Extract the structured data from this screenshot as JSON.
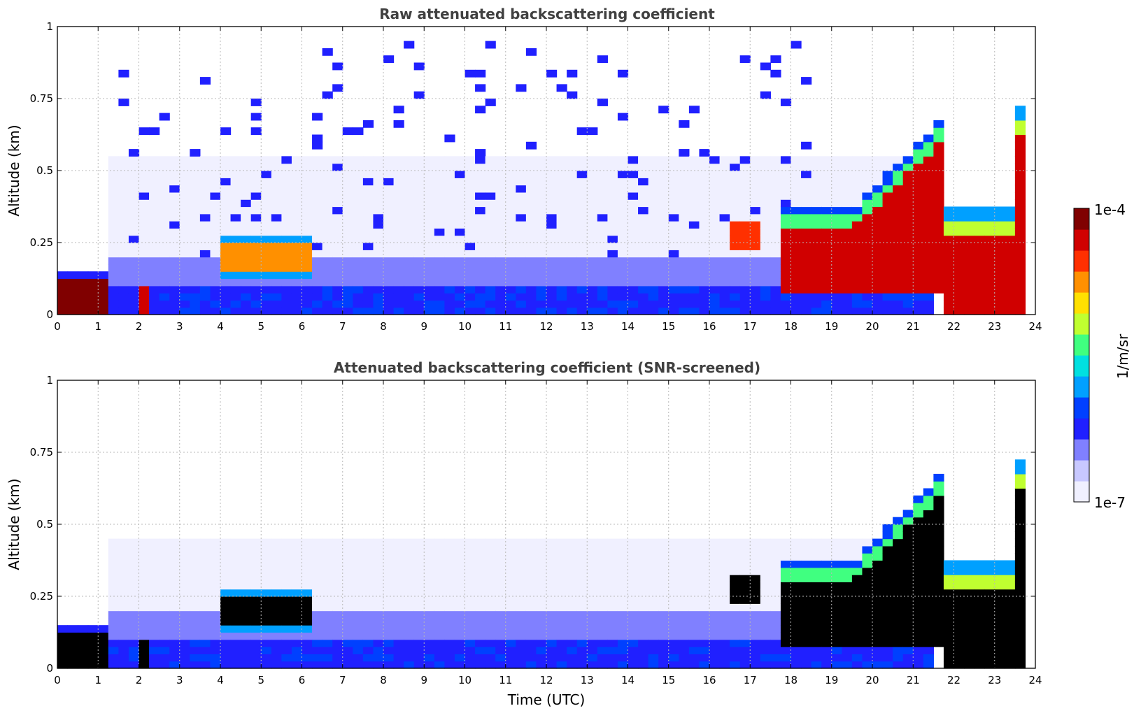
{
  "chart_data": [
    {
      "type": "heatmap",
      "title": "Raw attenuated backscattering coefficient",
      "xlabel": "",
      "ylabel": "Altitude (km)",
      "xlim": [
        0,
        24
      ],
      "ylim": [
        0,
        1
      ],
      "x_ticks": [
        "0",
        "1",
        "2",
        "3",
        "4",
        "5",
        "6",
        "7",
        "8",
        "9",
        "10",
        "11",
        "12",
        "13",
        "14",
        "15",
        "16",
        "17",
        "18",
        "19",
        "20",
        "21",
        "22",
        "23",
        "24"
      ],
      "y_ticks": [
        "0",
        "0.25",
        "0.5",
        "0.75",
        "1"
      ],
      "grid": true,
      "features": [
        {
          "name": "surface layer",
          "x": [
            0,
            1.3
          ],
          "y": [
            0,
            0.12
          ],
          "level": "high"
        },
        {
          "name": "aerosol layer",
          "x": [
            1.3,
            21.5
          ],
          "y": [
            0,
            0.1
          ],
          "level": "low-medium"
        },
        {
          "name": "elevated layer",
          "x": [
            4,
            6.3
          ],
          "y": [
            0.15,
            0.25
          ],
          "level": "high"
        },
        {
          "name": "cloud",
          "x": [
            16.5,
            17.2
          ],
          "y": [
            0.22,
            0.32
          ],
          "level": "high"
        },
        {
          "name": "cloud layer",
          "x": [
            17.7,
            21.8
          ],
          "y": [
            0.05,
            0.6
          ],
          "level": "very high"
        },
        {
          "name": "cloud layer",
          "x": [
            21.8,
            23.7
          ],
          "y": [
            0,
            0.35
          ],
          "level": "very high"
        }
      ]
    },
    {
      "type": "heatmap",
      "title": "Attenuated backscattering coefficient (SNR-screened)",
      "xlabel": "Time (UTC)",
      "ylabel": "Altitude (km)",
      "xlim": [
        0,
        24
      ],
      "ylim": [
        0,
        1
      ],
      "x_ticks": [
        "0",
        "1",
        "2",
        "3",
        "4",
        "5",
        "6",
        "7",
        "8",
        "9",
        "10",
        "11",
        "12",
        "13",
        "14",
        "15",
        "16",
        "17",
        "18",
        "19",
        "20",
        "21",
        "22",
        "23",
        "24"
      ],
      "y_ticks": [
        "0",
        "0.25",
        "0.5",
        "0.75",
        "1"
      ],
      "grid": true,
      "features": [
        {
          "name": "surface layer",
          "x": [
            0,
            1.3
          ],
          "y": [
            0,
            0.12
          ],
          "level": "saturated"
        },
        {
          "name": "aerosol layer",
          "x": [
            1.3,
            21.5
          ],
          "y": [
            0,
            0.45
          ],
          "level": "low"
        },
        {
          "name": "elevated layer",
          "x": [
            4,
            6.3
          ],
          "y": [
            0.15,
            0.25
          ],
          "level": "saturated"
        },
        {
          "name": "cloud layer",
          "x": [
            17.7,
            21.8
          ],
          "y": [
            0.05,
            0.6
          ],
          "level": "saturated"
        },
        {
          "name": "cloud layer",
          "x": [
            21.8,
            23.7
          ],
          "y": [
            0,
            0.35
          ],
          "level": "saturated"
        }
      ]
    }
  ],
  "colorbar": {
    "label": "1/m/sr",
    "min_label": "1e-7",
    "max_label": "1e-4",
    "scale": "log",
    "colors": [
      "#f0f0ff",
      "#c8c8ff",
      "#8080ff",
      "#2020ff",
      "#0040ff",
      "#00a0ff",
      "#00e0e0",
      "#40ff80",
      "#c0ff30",
      "#ffe000",
      "#ff9000",
      "#ff3000",
      "#d00000",
      "#800000"
    ]
  }
}
